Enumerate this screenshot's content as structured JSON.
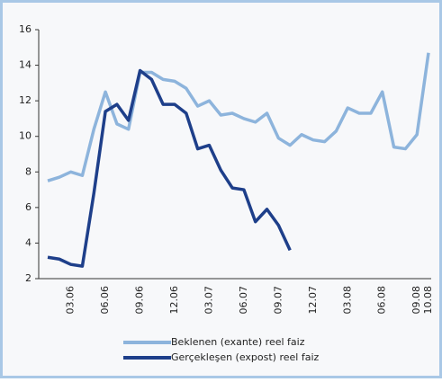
{
  "chart_data": {
    "type": "line",
    "categories": [
      null,
      null,
      "03.06",
      null,
      null,
      "06.06",
      null,
      null,
      "09.06",
      null,
      null,
      "12.06",
      null,
      null,
      "03.07",
      null,
      null,
      "06.07",
      null,
      null,
      "09.07",
      null,
      null,
      "12.07",
      null,
      null,
      "03.08",
      null,
      null,
      "06.08",
      null,
      null,
      "09.08",
      "10.08"
    ],
    "series": [
      {
        "name": "Beklenen (exante) reel faiz",
        "color": "#8db4dc",
        "values": [
          7.5,
          7.7,
          8.0,
          7.8,
          10.4,
          12.5,
          10.7,
          10.4,
          13.6,
          13.6,
          13.2,
          13.1,
          12.7,
          11.7,
          12.0,
          11.2,
          11.3,
          11.0,
          10.8,
          11.3,
          9.9,
          9.5,
          10.1,
          9.8,
          9.7,
          10.3,
          11.6,
          11.3,
          11.3,
          12.5,
          9.4,
          9.3,
          10.1,
          14.7
        ]
      },
      {
        "name": "Gerçekleşen (expost) reel faiz",
        "color": "#1e3f8a",
        "values": [
          3.2,
          3.1,
          2.8,
          2.7,
          6.8,
          11.4,
          11.8,
          10.9,
          13.7,
          13.2,
          11.8,
          11.8,
          11.3,
          9.3,
          9.5,
          8.1,
          7.1,
          7.0,
          5.2,
          5.9,
          5.0,
          3.6,
          null,
          null,
          null,
          null,
          null,
          null,
          null,
          null,
          null,
          null,
          null,
          null
        ]
      }
    ],
    "ylim": [
      2,
      16
    ],
    "yticks": [
      2,
      4,
      6,
      8,
      10,
      12,
      14,
      16
    ]
  }
}
